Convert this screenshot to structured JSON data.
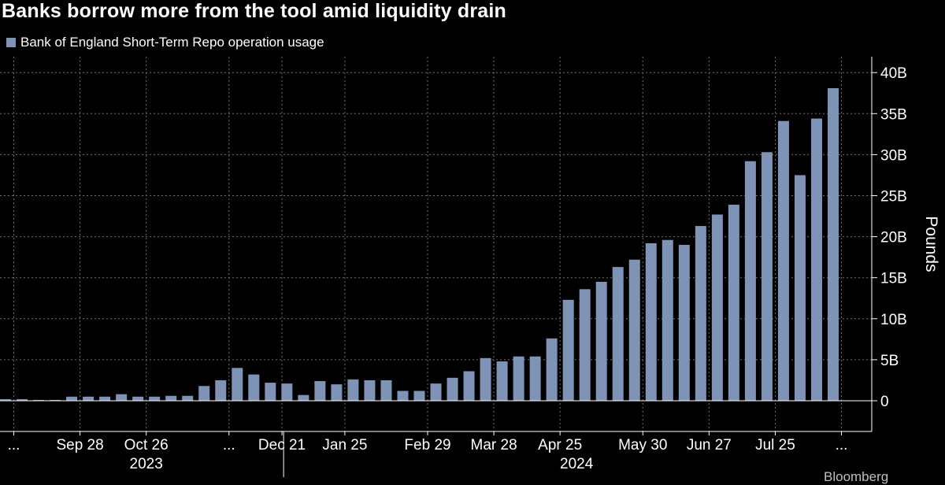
{
  "header": {
    "title": "Banks borrow more from the tool amid liquidity drain",
    "legend_label": "Bank of England Short-Term Repo operation usage",
    "source": "Bloomberg"
  },
  "colors": {
    "bar": "#7f93b6",
    "grid": "#6f6f6f",
    "axis": "#ffffff"
  },
  "chart_data": {
    "type": "bar",
    "title": "Banks borrow more from the tool amid liquidity drain",
    "series": [
      {
        "name": "Bank of England Short-Term Repo operation usage",
        "values": [
          0.2,
          0.2,
          0.1,
          0.1,
          0.5,
          0.5,
          0.5,
          0.8,
          0.5,
          0.5,
          0.6,
          0.6,
          1.8,
          2.5,
          4.0,
          3.2,
          2.2,
          2.1,
          0.7,
          2.4,
          2.0,
          2.6,
          2.5,
          2.5,
          1.2,
          1.2,
          2.1,
          2.8,
          3.6,
          5.2,
          4.8,
          5.4,
          5.4,
          7.6,
          12.3,
          13.6,
          14.5,
          16.3,
          17.2,
          19.2,
          19.6,
          19.0,
          21.3,
          22.7,
          23.9,
          29.2,
          30.3,
          34.1,
          27.5,
          34.4,
          38.1
        ]
      }
    ],
    "ylabel": "Pounds",
    "ylim": [
      -4,
      42
    ],
    "yticks": [
      0,
      5,
      10,
      15,
      20,
      25,
      30,
      35,
      40
    ],
    "ytick_labels": [
      "0",
      "5B",
      "10B",
      "15B",
      "20B",
      "25B",
      "30B",
      "35B",
      "40B"
    ],
    "xtick_labels": [
      {
        "label": "...",
        "at": 0.5
      },
      {
        "label": "Sep 28",
        "at": 4.5
      },
      {
        "label": "Oct 26",
        "at": 8.5
      },
      {
        "label": "...",
        "at": 13.5
      },
      {
        "label": "Dec 21",
        "at": 16.7
      },
      {
        "label": "Jan 25",
        "at": 20.5
      },
      {
        "label": "Feb 29",
        "at": 25.5
      },
      {
        "label": "Mar 28",
        "at": 29.5
      },
      {
        "label": "Apr 25",
        "at": 33.5
      },
      {
        "label": "May 30",
        "at": 38.5
      },
      {
        "label": "Jun 27",
        "at": 42.5
      },
      {
        "label": "Jul 25",
        "at": 46.5
      },
      {
        "label": "...",
        "at": 50.5
      }
    ],
    "year_labels": [
      {
        "label": "2023",
        "at": 8.5
      },
      {
        "label": "2024",
        "at": 34.5
      }
    ],
    "year_divider_at": 16.8,
    "vgrid_at": [
      0.5,
      4.5,
      8.5,
      13.5,
      16.7,
      20.5,
      25.5,
      29.5,
      33.5,
      38.5,
      42.5,
      46.5,
      50.5
    ],
    "grid": true,
    "legend": "top-left"
  }
}
